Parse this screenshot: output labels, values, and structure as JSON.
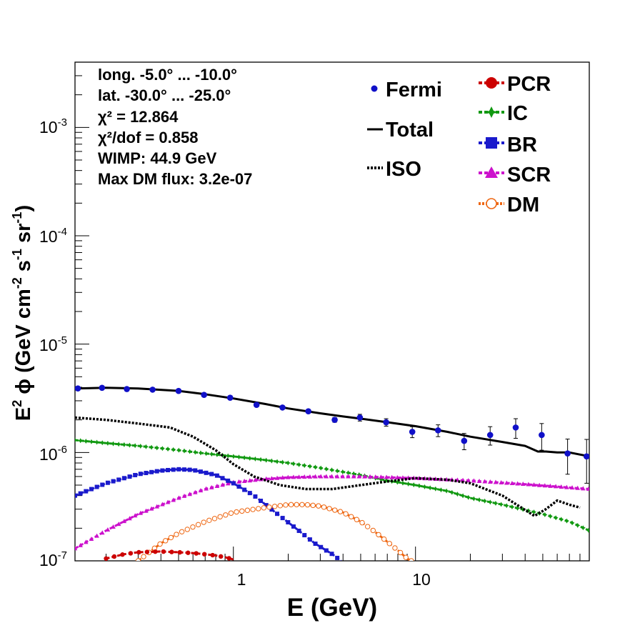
{
  "chart_data": {
    "type": "line",
    "xlabel": "E (GeV)",
    "ylabel": "E^2 ϕ (GeV cm^-2 s^-1 sr^-1)",
    "xscale": "log",
    "yscale": "log",
    "xlim": [
      0.135,
      90
    ],
    "ylim": [
      1e-07,
      0.004
    ],
    "x_ticks": [
      "1",
      "10"
    ],
    "y_ticks": [
      {
        "base": "10",
        "exp": "-7"
      },
      {
        "base": "10",
        "exp": "-6"
      },
      {
        "base": "10",
        "exp": "-5"
      },
      {
        "base": "10",
        "exp": "-4"
      },
      {
        "base": "10",
        "exp": "-3"
      }
    ],
    "annotations": {
      "longitude": "long. -5.0° ... -10.0°",
      "latitude": "lat. -30.0° ... -25.0°",
      "chi2": "χ² = 12.864",
      "chi2_dof": "χ²/dof = 0.858",
      "wimp": "WIMP: 44.9 GeV",
      "max_dm_flux": "Max DM flux: 3.2e-07"
    },
    "legend": {
      "left": [
        {
          "key": "fermi",
          "label": "Fermi"
        },
        {
          "key": "total",
          "label": "Total"
        },
        {
          "key": "iso",
          "label": "ISO"
        }
      ],
      "right": [
        {
          "key": "pcr",
          "label": "PCR"
        },
        {
          "key": "ic",
          "label": "IC"
        },
        {
          "key": "br",
          "label": "BR"
        },
        {
          "key": "scr",
          "label": "SCR"
        },
        {
          "key": "dm",
          "label": "DM"
        }
      ]
    },
    "colors": {
      "fermi": "#1010c8",
      "total": "#000000",
      "iso": "#000000",
      "pcr": "#cc0000",
      "ic": "#119911",
      "br": "#1a1acc",
      "scr": "#cc11cc",
      "dm": "#ee6611"
    },
    "series": [
      {
        "name": "Fermi",
        "key": "fermi",
        "style": "points",
        "points": [
          {
            "x": 0.14,
            "y": 3.9e-06,
            "err": 8e-08
          },
          {
            "x": 0.19,
            "y": 3.95e-06,
            "err": 8e-08
          },
          {
            "x": 0.26,
            "y": 3.85e-06,
            "err": 8e-08
          },
          {
            "x": 0.36,
            "y": 3.8e-06,
            "err": 8e-08
          },
          {
            "x": 0.5,
            "y": 3.7e-06,
            "err": 8e-08
          },
          {
            "x": 0.69,
            "y": 3.4e-06,
            "err": 8e-08
          },
          {
            "x": 0.96,
            "y": 3.2e-06,
            "err": 8e-08
          },
          {
            "x": 1.34,
            "y": 2.75e-06,
            "err": 8e-08
          },
          {
            "x": 1.86,
            "y": 2.6e-06,
            "err": 8e-08
          },
          {
            "x": 2.58,
            "y": 2.4e-06,
            "err": 1e-07
          },
          {
            "x": 3.6,
            "y": 2e-06,
            "err": 1e-07
          },
          {
            "x": 4.95,
            "y": 2.1e-06,
            "err": 1.5e-07
          },
          {
            "x": 6.9,
            "y": 1.9e-06,
            "err": 1.5e-07
          },
          {
            "x": 9.6,
            "y": 1.55e-06,
            "err": 1.8e-07
          },
          {
            "x": 13.3,
            "y": 1.6e-06,
            "err": 2e-07
          },
          {
            "x": 18.5,
            "y": 1.28e-06,
            "err": 2.2e-07
          },
          {
            "x": 25.7,
            "y": 1.45e-06,
            "err": 2.8e-07
          },
          {
            "x": 35.5,
            "y": 1.7e-06,
            "err": 3.5e-07
          },
          {
            "x": 49.3,
            "y": 1.45e-06,
            "err": 4e-07
          },
          {
            "x": 68.4,
            "y": 9.8e-07,
            "err": 3.5e-07
          },
          {
            "x": 87,
            "y": 9.2e-07,
            "err": 4e-07
          }
        ]
      },
      {
        "name": "Total",
        "key": "total",
        "style": "solid",
        "x": [
          0.135,
          0.2,
          0.3,
          0.5,
          0.7,
          1.0,
          1.5,
          2.0,
          3.0,
          4.0,
          5.0,
          7.0,
          10,
          15,
          20,
          30,
          40,
          47,
          52,
          60,
          70,
          90
        ],
        "y": [
          3.9e-06,
          3.95e-06,
          3.9e-06,
          3.7e-06,
          3.45e-06,
          3.15e-06,
          2.8e-06,
          2.55e-06,
          2.3e-06,
          2.15e-06,
          2.05e-06,
          1.9e-06,
          1.75e-06,
          1.55e-06,
          1.4e-06,
          1.25e-06,
          1.15e-06,
          1.02e-06,
          1.02e-06,
          1e-06,
          1e-06,
          9.2e-07
        ]
      },
      {
        "name": "ISO",
        "key": "iso",
        "style": "dotted",
        "x": [
          0.135,
          0.2,
          0.3,
          0.45,
          0.6,
          0.8,
          1.0,
          1.3,
          1.8,
          2.5,
          3.5,
          5,
          7,
          10,
          15,
          20,
          30,
          45,
          52,
          60,
          70,
          80
        ],
        "y": [
          2.1e-06,
          2e-06,
          1.85e-06,
          1.7e-06,
          1.4e-06,
          1.05e-06,
          7.8e-07,
          6e-07,
          5e-07,
          4.6e-07,
          4.6e-07,
          5e-07,
          5.4e-07,
          5.8e-07,
          5.6e-07,
          5.2e-07,
          4e-07,
          2.6e-07,
          3e-07,
          3.6e-07,
          3.3e-07,
          3.1e-07
        ]
      },
      {
        "name": "PCR",
        "key": "pcr",
        "style": "marker-line",
        "x": [
          0.2,
          0.25,
          0.3,
          0.4,
          0.5,
          0.6,
          0.7,
          0.8,
          0.9,
          1.0
        ],
        "y": [
          1.05e-07,
          1.15e-07,
          1.2e-07,
          1.22e-07,
          1.2e-07,
          1.18e-07,
          1.15e-07,
          1.12e-07,
          1.08e-07,
          1.03e-07
        ]
      },
      {
        "name": "IC",
        "key": "ic",
        "style": "marker-line",
        "x": [
          0.135,
          0.2,
          0.3,
          0.5,
          0.7,
          1.0,
          1.5,
          2,
          3,
          5,
          7,
          10,
          15,
          20,
          30,
          50,
          70,
          90
        ],
        "y": [
          1.3e-06,
          1.22e-06,
          1.15e-06,
          1.05e-06,
          9.8e-07,
          9.2e-07,
          8.5e-07,
          8e-07,
          7.2e-07,
          6.2e-07,
          5.5e-07,
          5e-07,
          4.4e-07,
          3.8e-07,
          3.3e-07,
          2.7e-07,
          2.3e-07,
          1.9e-07
        ]
      },
      {
        "name": "BR",
        "key": "br",
        "style": "marker-line",
        "x": [
          0.135,
          0.2,
          0.3,
          0.4,
          0.5,
          0.6,
          0.8,
          1.0,
          1.3,
          1.7,
          2.2,
          2.8,
          3.5,
          3.9
        ],
        "y": [
          4e-07,
          5.2e-07,
          6.3e-07,
          6.8e-07,
          7e-07,
          6.9e-07,
          6.2e-07,
          5.2e-07,
          4e-07,
          2.8e-07,
          2e-07,
          1.45e-07,
          1.15e-07,
          1e-07
        ]
      },
      {
        "name": "SCR",
        "key": "scr",
        "style": "marker-line",
        "x": [
          0.135,
          0.2,
          0.3,
          0.5,
          0.7,
          1.0,
          1.5,
          2,
          3,
          5,
          10,
          20,
          40,
          90
        ],
        "y": [
          1.3e-07,
          1.9e-07,
          2.7e-07,
          3.8e-07,
          4.6e-07,
          5.3e-07,
          5.7e-07,
          5.9e-07,
          6e-07,
          6e-07,
          5.8e-07,
          5.5e-07,
          5.1e-07,
          4.6e-07
        ]
      },
      {
        "name": "DM",
        "key": "dm",
        "style": "marker-line",
        "x": [
          0.3,
          0.4,
          0.5,
          0.7,
          1.0,
          1.5,
          2.0,
          2.5,
          3.0,
          4.0,
          5.0,
          6.0,
          7.0,
          8.0,
          9.0,
          9.5
        ],
        "y": [
          1e-07,
          1.45e-07,
          1.8e-07,
          2.3e-07,
          2.8e-07,
          3.1e-07,
          3.3e-07,
          3.3e-07,
          3.2e-07,
          2.8e-07,
          2.3e-07,
          1.85e-07,
          1.5e-07,
          1.25e-07,
          1.05e-07,
          1e-07
        ]
      }
    ]
  }
}
